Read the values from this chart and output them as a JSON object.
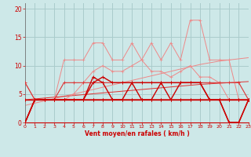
{
  "x": [
    0,
    1,
    2,
    3,
    4,
    5,
    6,
    7,
    8,
    9,
    10,
    11,
    12,
    13,
    14,
    15,
    16,
    17,
    18,
    19,
    20,
    21,
    22,
    23
  ],
  "line_flat4": [
    4,
    4,
    4,
    4,
    4,
    4,
    4,
    4,
    4,
    4,
    4,
    4,
    4,
    4,
    4,
    4,
    4,
    4,
    4,
    4,
    4,
    4,
    4,
    4
  ],
  "line_start0_flat4": [
    0,
    4,
    4,
    4,
    4,
    4,
    4,
    4,
    4,
    4,
    4,
    4,
    4,
    4,
    4,
    4,
    4,
    4,
    4,
    4,
    4,
    4,
    4,
    4
  ],
  "line_7flat": [
    7,
    4,
    4,
    4,
    7,
    7,
    7,
    7,
    7,
    7,
    7,
    7,
    7,
    7,
    7,
    7,
    7,
    7,
    7,
    7,
    7,
    7,
    7,
    4
  ],
  "line_zigzag_dark1": [
    0,
    4,
    4,
    4,
    4,
    4,
    4,
    8,
    7,
    4,
    4,
    7,
    4,
    4,
    7,
    4,
    7,
    7,
    7,
    4,
    4,
    0,
    0,
    4
  ],
  "line_zigzag_dark2": [
    0,
    4,
    4,
    4,
    4,
    4,
    4,
    7,
    8,
    7,
    7,
    7,
    7,
    7,
    7,
    7,
    7,
    7,
    7,
    4,
    4,
    0,
    0,
    4
  ],
  "line_mid_wavy": [
    7,
    4,
    4,
    4,
    4,
    5,
    7,
    9,
    10,
    9,
    9,
    10,
    11,
    9,
    9,
    8,
    9,
    10,
    8,
    8,
    7,
    4,
    4,
    4
  ],
  "line_light_high": [
    0,
    4,
    4,
    4,
    11,
    11,
    11,
    14,
    14,
    11,
    11,
    14,
    11,
    14,
    11,
    14,
    11,
    18,
    18,
    11,
    11,
    11,
    4,
    4
  ],
  "trend_light": [
    3.0,
    3.4,
    3.8,
    4.2,
    4.6,
    5.0,
    5.4,
    5.8,
    6.2,
    6.6,
    7.0,
    7.4,
    7.8,
    8.2,
    8.6,
    9.0,
    9.4,
    9.8,
    10.2,
    10.5,
    10.8,
    11.0,
    11.2,
    11.4
  ],
  "trend_mid": [
    4.0,
    4.15,
    4.3,
    4.45,
    4.6,
    4.75,
    4.9,
    5.05,
    5.2,
    5.35,
    5.5,
    5.65,
    5.8,
    5.95,
    6.1,
    6.25,
    6.4,
    6.55,
    6.7,
    6.8,
    6.9,
    7.0,
    7.1,
    7.2
  ],
  "bg_color": "#cde8e8",
  "grid_color": "#aacccc",
  "line_dark": "#cc0000",
  "line_mid": "#dd3333",
  "line_light": "#ee8888",
  "xlabel": "Vent moyen/en rafales ( km/h )",
  "xlim": [
    0,
    23
  ],
  "ylim": [
    0,
    21
  ],
  "yticks": [
    0,
    5,
    10,
    15,
    20
  ],
  "xticks": [
    0,
    1,
    2,
    3,
    4,
    5,
    6,
    7,
    8,
    9,
    10,
    11,
    12,
    13,
    14,
    15,
    16,
    17,
    18,
    19,
    20,
    21,
    22,
    23
  ]
}
